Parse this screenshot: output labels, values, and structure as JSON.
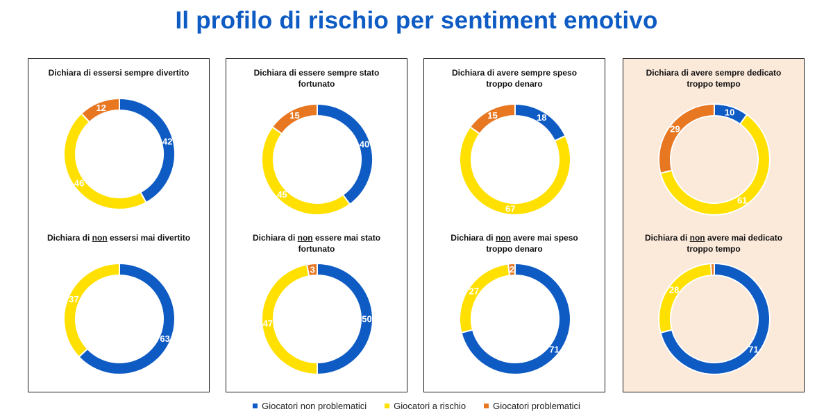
{
  "title": "Il profilo di rischio per sentiment emotivo",
  "colors": {
    "non_problematici": "#0E5BC4",
    "a_rischio": "#FFE000",
    "problematici": "#E87722",
    "title": "#0E5BC4",
    "highlight_panel": "#FBE9DA"
  },
  "legend": [
    {
      "label": "Giocatori non problematici",
      "color": "#0E5BC4"
    },
    {
      "label": "Giocatori a rischio",
      "color": "#FFE000"
    },
    {
      "label": "Giocatori problematici",
      "color": "#E87722"
    }
  ],
  "chart_data": [
    {
      "type": "pie",
      "variant": "donut",
      "title": "Dichiara di essersi sempre divertito",
      "series": [
        "Giocatori non problematici",
        "Giocatori problematici",
        "Giocatori a rischio"
      ],
      "values": {
        "Giocatori non problematici": 42,
        "Giocatori a rischio": 46,
        "Giocatori problematici": 12
      }
    },
    {
      "type": "pie",
      "variant": "donut",
      "title": "Dichiara di non essersi mai divertito",
      "values": {
        "Giocatori non problematici": 63,
        "Giocatori a rischio": 37,
        "Giocatori problematici": 0
      }
    },
    {
      "type": "pie",
      "variant": "donut",
      "title": "Dichiara di essere sempre stato fortunato",
      "values": {
        "Giocatori non problematici": 40,
        "Giocatori a rischio": 45,
        "Giocatori problematici": 15
      }
    },
    {
      "type": "pie",
      "variant": "donut",
      "title": "Dichiara di non essere mai stato fortunato",
      "values": {
        "Giocatori non problematici": 50,
        "Giocatori a rischio": 47,
        "Giocatori problematici": 3
      }
    },
    {
      "type": "pie",
      "variant": "donut",
      "title": "Dichiara di avere sempre speso troppo denaro",
      "values": {
        "Giocatori non problematici": 18,
        "Giocatori a rischio": 67,
        "Giocatori problematici": 15
      }
    },
    {
      "type": "pie",
      "variant": "donut",
      "title": "Dichiara di non avere mai speso troppo denaro",
      "values": {
        "Giocatori non problematici": 71,
        "Giocatori a rischio": 27,
        "Giocatori problematici": 2
      }
    },
    {
      "type": "pie",
      "variant": "donut",
      "title": "Dichiara di avere sempre dedicato troppo tempo",
      "values": {
        "Giocatori non problematici": 10,
        "Giocatori a rischio": 61,
        "Giocatori problematici": 29
      }
    },
    {
      "type": "pie",
      "variant": "donut",
      "title": "Dichiara di non avere mai dedicato troppo tempo",
      "values": {
        "Giocatori non problematici": 71,
        "Giocatori a rischio": 28,
        "Giocatori problematici": 1
      }
    }
  ],
  "panels": [
    {
      "id": "divertito",
      "top_chart": {
        "title_lines": [
          "Dichiara di essersi sempre divertito"
        ],
        "labels": {
          "np": "42",
          "ar": "46",
          "pb": "12"
        }
      },
      "bottom_chart": {
        "title_parts": [
          "Dichiara di ",
          "non",
          " essersi mai divertito"
        ],
        "labels": {
          "np": "63",
          "ar": "37",
          "pb": ""
        }
      }
    },
    {
      "id": "fortunato",
      "top_chart": {
        "title_lines": [
          "Dichiara di essere sempre stato",
          "fortunato"
        ],
        "labels": {
          "np": "40",
          "ar": "45",
          "pb": "15"
        }
      },
      "bottom_chart": {
        "title_parts": [
          "Dichiara di ",
          "non",
          " essere mai stato\nfortunato"
        ],
        "labels": {
          "np": "50",
          "ar": "47",
          "pb": "3"
        }
      }
    },
    {
      "id": "denaro",
      "top_chart": {
        "title_lines": [
          "Dichiara di avere sempre speso",
          "troppo denaro"
        ],
        "labels": {
          "np": "18",
          "ar": "67",
          "pb": "15"
        }
      },
      "bottom_chart": {
        "title_parts": [
          "Dichiara di ",
          "non",
          " avere mai speso\ntroppo denaro"
        ],
        "labels": {
          "np": "71",
          "ar": "27",
          "pb": "2"
        }
      }
    },
    {
      "id": "tempo",
      "highlight": true,
      "top_chart": {
        "title_lines": [
          "Dichiara di avere sempre dedicato",
          "troppo tempo"
        ],
        "labels": {
          "np": "10",
          "ar": "61",
          "pb": "29"
        }
      },
      "bottom_chart": {
        "title_parts": [
          "Dichiara di ",
          "non",
          " avere mai dedicato\ntroppo tempo"
        ],
        "labels": {
          "np": "71",
          "ar": "28",
          "pb": ""
        }
      }
    }
  ]
}
